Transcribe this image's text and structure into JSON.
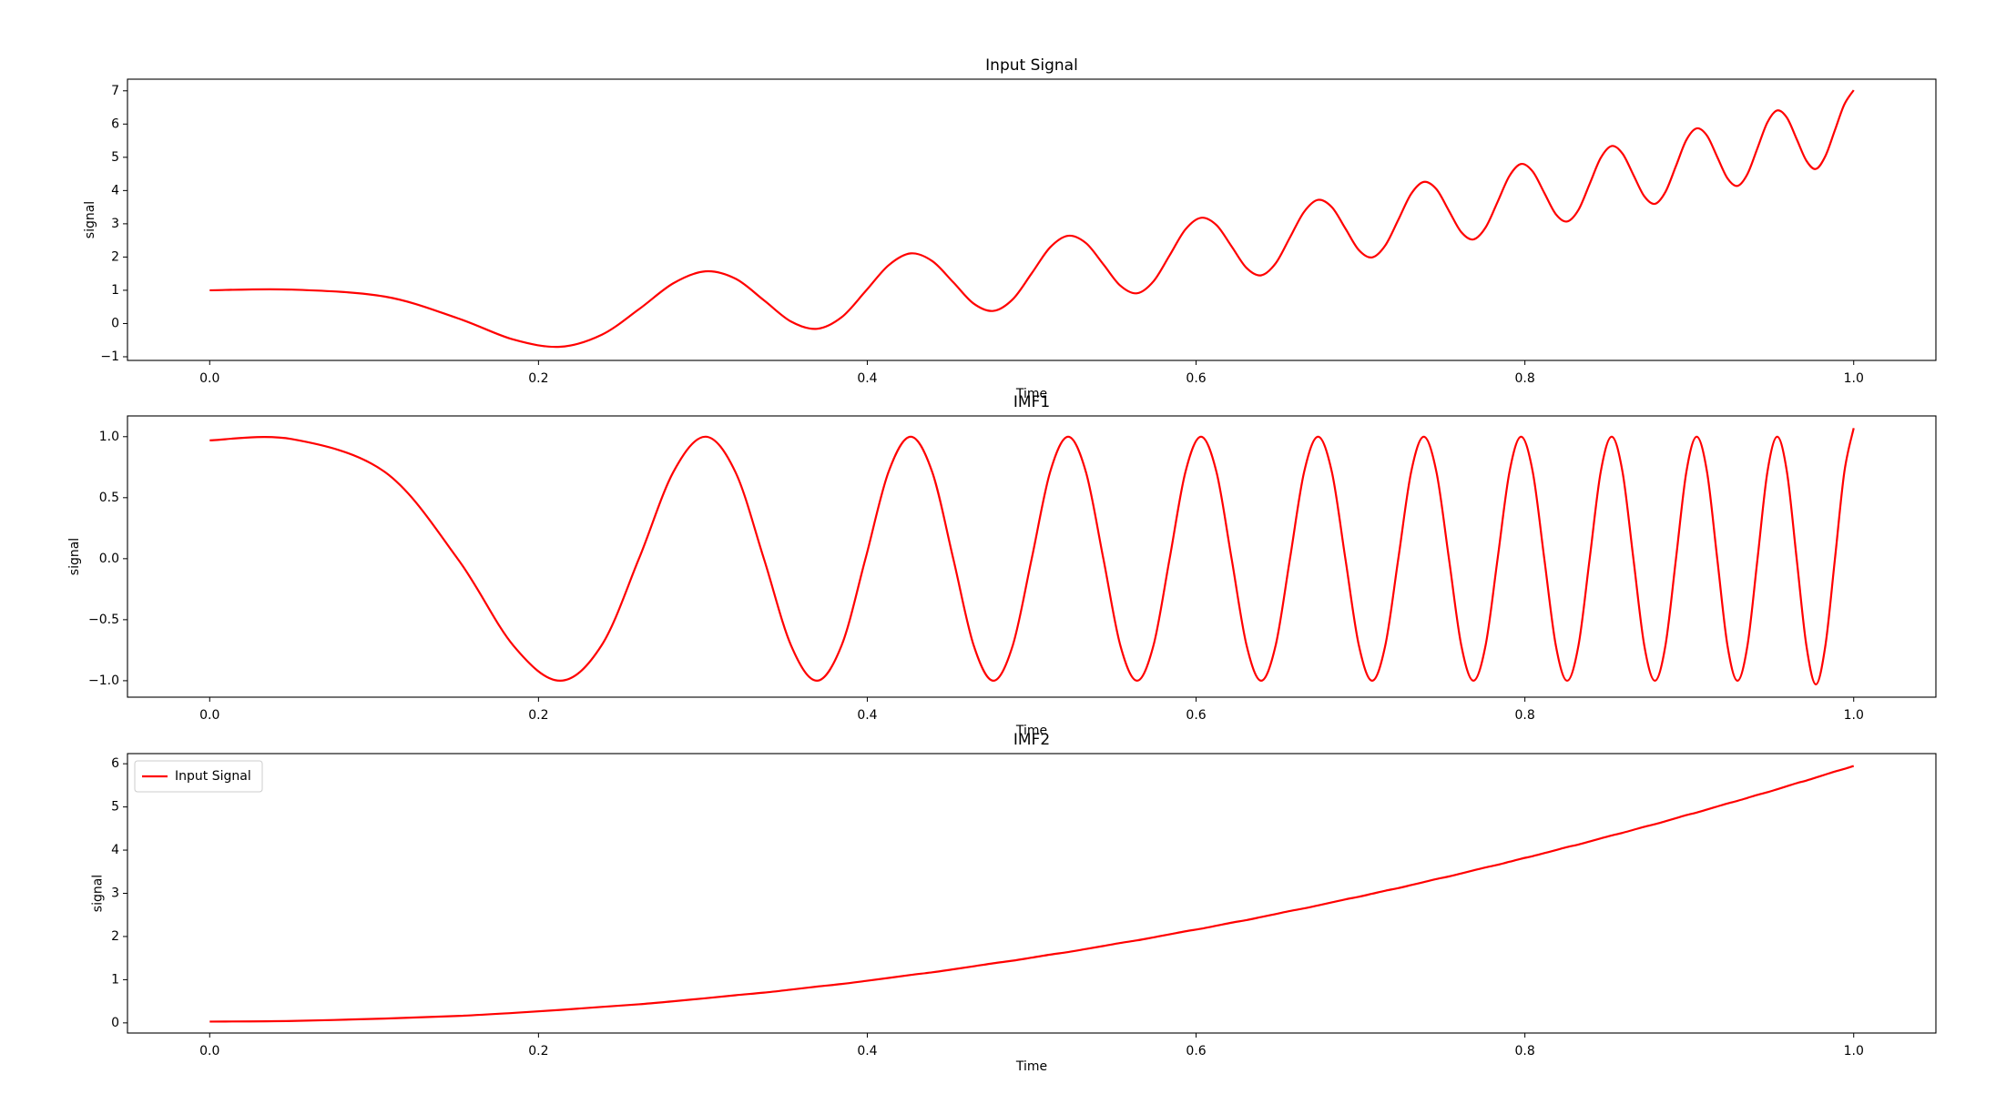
{
  "chart_data": [
    {
      "type": "line",
      "title": "Input Signal",
      "xlabel": "Time",
      "ylabel": "signal",
      "x": [
        0,
        0.05,
        0.1066,
        0.1508,
        0.1846,
        0.2132,
        0.2384,
        0.2611,
        0.282,
        0.3015,
        0.3198,
        0.3371,
        0.3536,
        0.3693,
        0.3844,
        0.3989,
        0.4129,
        0.4264,
        0.4395,
        0.4523,
        0.4647,
        0.4767,
        0.4885,
        0.5,
        0.5112,
        0.5222,
        0.533,
        0.5436,
        0.5539,
        0.5641,
        0.5741,
        0.5839,
        0.5935,
        0.603,
        0.6124,
        0.6216,
        0.6307,
        0.6396,
        0.6484,
        0.6571,
        0.6657,
        0.6742,
        0.6826,
        0.6908,
        0.699,
        0.7071,
        0.7151,
        0.723,
        0.7308,
        0.7385,
        0.7462,
        0.7538,
        0.7613,
        0.7687,
        0.7761,
        0.7834,
        0.7906,
        0.7977,
        0.8048,
        0.8118,
        0.8188,
        0.8257,
        0.8326,
        0.8394,
        0.8461,
        0.8528,
        0.8594,
        0.866,
        0.8726,
        0.8791,
        0.8855,
        0.8919,
        0.8982,
        0.9045,
        0.9108,
        0.917,
        0.9232,
        0.9293,
        0.9354,
        0.9415,
        0.9475,
        0.9535,
        0.9594,
        0.9653,
        0.9712,
        0.977,
        0.9828,
        0.9886,
        0.9943,
        1
      ],
      "series": [
        {
          "color": "#ff0000",
          "values": [
            1.0,
            1.02,
            0.81,
            0.16,
            -0.48,
            -0.7,
            -0.34,
            0.43,
            1.21,
            1.57,
            1.35,
            0.7,
            0.06,
            -0.16,
            0.19,
            0.97,
            1.75,
            2.11,
            1.88,
            1.24,
            0.6,
            0.38,
            0.73,
            1.51,
            2.29,
            2.64,
            2.42,
            1.78,
            1.14,
            0.91,
            1.27,
            2.05,
            2.83,
            3.18,
            2.96,
            2.32,
            1.67,
            1.45,
            1.81,
            2.59,
            3.36,
            3.72,
            3.5,
            2.86,
            2.21,
            1.99,
            2.35,
            3.12,
            3.9,
            4.26,
            4.04,
            3.39,
            2.75,
            2.53,
            2.89,
            3.66,
            4.44,
            4.8,
            4.57,
            3.93,
            3.29,
            3.07,
            3.42,
            4.2,
            4.98,
            5.34,
            5.11,
            4.47,
            3.83,
            3.6,
            3.96,
            4.74,
            5.52,
            5.87,
            5.65,
            5.01,
            4.37,
            4.14,
            4.5,
            5.28,
            6.05,
            6.41,
            6.19,
            5.55,
            4.9,
            4.65,
            5.04,
            5.82,
            6.59,
            7.02
          ]
        }
      ],
      "xlim": [
        -0.05,
        1.05
      ],
      "xticks": [
        {
          "value": 0,
          "label": "0.0"
        },
        0.2,
        0.4,
        0.6,
        0.8,
        {
          "value": 1,
          "label": "1.0"
        }
      ],
      "ylim": [
        -1.11,
        7.35
      ],
      "yticks": [
        {
          "value": -1,
          "label": "−1"
        },
        0,
        1,
        2,
        3,
        4,
        5,
        6,
        7
      ]
    },
    {
      "type": "line",
      "title": "IMF1",
      "xlabel": "Time",
      "ylabel": "signal",
      "x": [
        0,
        0.05,
        0.1066,
        0.1508,
        0.1846,
        0.2132,
        0.2384,
        0.2611,
        0.282,
        0.3015,
        0.3198,
        0.3371,
        0.3536,
        0.3693,
        0.3844,
        0.3989,
        0.4129,
        0.4264,
        0.4395,
        0.4523,
        0.4647,
        0.4767,
        0.4885,
        0.5,
        0.5112,
        0.5222,
        0.533,
        0.5436,
        0.5539,
        0.5641,
        0.5741,
        0.5839,
        0.5935,
        0.603,
        0.6124,
        0.6216,
        0.6307,
        0.6396,
        0.6484,
        0.6571,
        0.6657,
        0.6742,
        0.6826,
        0.6908,
        0.699,
        0.7071,
        0.7151,
        0.723,
        0.7308,
        0.7385,
        0.7462,
        0.7538,
        0.7613,
        0.7687,
        0.7761,
        0.7834,
        0.7906,
        0.7977,
        0.8048,
        0.8118,
        0.8188,
        0.8257,
        0.8326,
        0.8394,
        0.8461,
        0.8528,
        0.8594,
        0.866,
        0.8726,
        0.8791,
        0.8855,
        0.8919,
        0.8982,
        0.9045,
        0.9108,
        0.917,
        0.9232,
        0.9293,
        0.9354,
        0.9415,
        0.9475,
        0.9535,
        0.9594,
        0.9653,
        0.9712,
        0.977,
        0.9828,
        0.9886,
        0.9943,
        1
      ],
      "series": [
        {
          "color": "#ff0000",
          "values": [
            0.97,
            0.98,
            0.71,
            0,
            -0.71,
            -1,
            -0.71,
            0,
            0.71,
            1,
            0.71,
            0,
            -0.71,
            -1,
            -0.71,
            0,
            0.71,
            1,
            0.71,
            0,
            -0.71,
            -1,
            -0.71,
            0,
            0.71,
            1,
            0.71,
            0,
            -0.71,
            -1,
            -0.71,
            0,
            0.71,
            1,
            0.71,
            0,
            -0.71,
            -1,
            -0.71,
            0,
            0.71,
            1,
            0.71,
            0,
            -0.71,
            -1,
            -0.71,
            0,
            0.71,
            1,
            0.71,
            0,
            -0.71,
            -1,
            -0.71,
            0,
            0.71,
            1,
            0.71,
            0,
            -0.71,
            -1,
            -0.71,
            0,
            0.71,
            1,
            0.71,
            0,
            -0.71,
            -1,
            -0.71,
            0,
            0.71,
            1,
            0.71,
            0,
            -0.71,
            -1,
            -0.71,
            0,
            0.71,
            1,
            0.71,
            0,
            -0.71,
            -1.03,
            -0.71,
            0,
            0.71,
            1.07
          ]
        }
      ],
      "xlim": [
        -0.05,
        1.05
      ],
      "xticks": [
        {
          "value": 0,
          "label": "0.0"
        },
        0.2,
        0.4,
        0.6,
        0.8,
        {
          "value": 1,
          "label": "1.0"
        }
      ],
      "ylim": [
        -1.135,
        1.17
      ],
      "yticks": [
        {
          "value": -1,
          "label": "−1.0"
        },
        {
          "value": -0.5,
          "label": "−0.5"
        },
        {
          "value": 0,
          "label": "0.0"
        },
        0.5,
        {
          "value": 1,
          "label": "1.0"
        }
      ]
    },
    {
      "type": "line",
      "title": "IMF2",
      "xlabel": "Time",
      "ylabel": "signal",
      "legend": "upper left",
      "x": [
        0,
        0.05,
        0.1066,
        0.1508,
        0.1846,
        0.2132,
        0.2384,
        0.2611,
        0.282,
        0.3015,
        0.3198,
        0.3371,
        0.3536,
        0.3693,
        0.3844,
        0.3989,
        0.4129,
        0.4264,
        0.4395,
        0.4523,
        0.4647,
        0.4767,
        0.4885,
        0.5,
        0.5112,
        0.5222,
        0.533,
        0.5436,
        0.5539,
        0.5641,
        0.5741,
        0.5839,
        0.5935,
        0.603,
        0.6124,
        0.6216,
        0.6307,
        0.6396,
        0.6484,
        0.6571,
        0.6657,
        0.6742,
        0.6826,
        0.6908,
        0.699,
        0.7071,
        0.7151,
        0.723,
        0.7308,
        0.7385,
        0.7462,
        0.7538,
        0.7613,
        0.7687,
        0.7761,
        0.7834,
        0.7906,
        0.7977,
        0.8048,
        0.8118,
        0.8188,
        0.8257,
        0.8326,
        0.8394,
        0.8461,
        0.8528,
        0.8594,
        0.866,
        0.8726,
        0.8791,
        0.8855,
        0.8919,
        0.8982,
        0.9045,
        0.9108,
        0.917,
        0.9232,
        0.9293,
        0.9354,
        0.9415,
        0.9475,
        0.9535,
        0.9594,
        0.9653,
        0.9712,
        0.977,
        0.9828,
        0.9886,
        0.9943,
        1
      ],
      "series": [
        {
          "name": "Input Signal",
          "color": "#ff0000",
          "values": [
            0.03,
            0.045,
            0.1,
            0.16,
            0.23,
            0.3,
            0.37,
            0.43,
            0.5,
            0.57,
            0.64,
            0.7,
            0.77,
            0.84,
            0.9,
            0.97,
            1.04,
            1.11,
            1.17,
            1.24,
            1.31,
            1.38,
            1.44,
            1.51,
            1.58,
            1.64,
            1.71,
            1.78,
            1.85,
            1.91,
            1.98,
            2.05,
            2.12,
            2.18,
            2.25,
            2.32,
            2.38,
            2.45,
            2.52,
            2.59,
            2.65,
            2.72,
            2.79,
            2.86,
            2.92,
            2.99,
            3.06,
            3.12,
            3.19,
            3.26,
            3.33,
            3.39,
            3.46,
            3.53,
            3.6,
            3.66,
            3.73,
            3.8,
            3.86,
            3.93,
            4.0,
            4.07,
            4.13,
            4.2,
            4.27,
            4.34,
            4.4,
            4.47,
            4.54,
            4.6,
            4.67,
            4.74,
            4.81,
            4.87,
            4.94,
            5.01,
            5.08,
            5.14,
            5.21,
            5.28,
            5.34,
            5.41,
            5.48,
            5.55,
            5.61,
            5.68,
            5.75,
            5.82,
            5.88,
            5.95
          ]
        }
      ],
      "xlim": [
        -0.05,
        1.05
      ],
      "xticks": [
        {
          "value": 0,
          "label": "0.0"
        },
        0.2,
        0.4,
        0.6,
        0.8,
        {
          "value": 1,
          "label": "1.0"
        }
      ],
      "ylim": [
        -0.235,
        6.235
      ],
      "yticks": [
        0,
        1,
        2,
        3,
        4,
        5,
        6
      ]
    }
  ]
}
